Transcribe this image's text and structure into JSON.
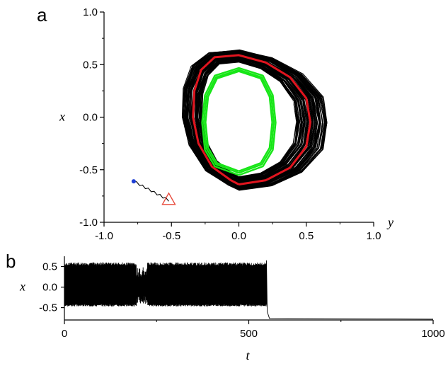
{
  "panels": {
    "a": {
      "label": "a"
    },
    "b": {
      "label": "b"
    }
  },
  "chart_data": [
    {
      "type": "scatter",
      "panel": "a",
      "description_type": "phase portrait",
      "xlabel": "y",
      "ylabel": "x",
      "xlim": [
        -1.0,
        1.0
      ],
      "ylim": [
        -1.0,
        1.0
      ],
      "xticks": [
        "-1.0",
        "-0.5",
        "0.0",
        "0.5",
        "1.0"
      ],
      "yticks": [
        "-1.0",
        "-0.5",
        "0.0",
        "0.5",
        "1.0"
      ],
      "x_tick_values": [
        -1.0,
        -0.5,
        0.0,
        0.5,
        1.0
      ],
      "y_tick_values": [
        -1.0,
        -0.5,
        0.0,
        0.5,
        1.0
      ],
      "grid": false,
      "colors": {
        "attractor": "#000000",
        "red_orbit": "#e0141e",
        "green_orbit": "#17e617",
        "start_point": "#1f3fd6",
        "end_marker": "#e84a3c"
      },
      "series": [
        {
          "color": "#e0141e",
          "x": [
            0.0,
            0.2,
            0.38,
            0.5,
            0.53,
            0.5,
            0.38,
            0.2,
            0.0,
            -0.18,
            -0.28,
            -0.33,
            -0.34,
            -0.3,
            -0.2,
            -0.06,
            0.0
          ],
          "y": [
            -0.64,
            -0.6,
            -0.48,
            -0.28,
            -0.05,
            0.18,
            0.38,
            0.52,
            0.59,
            0.57,
            0.45,
            0.25,
            0.0,
            -0.25,
            -0.47,
            -0.6,
            -0.64
          ]
        },
        {
          "color": "#17e617",
          "x": [
            0.0,
            0.17,
            0.24,
            0.26,
            0.24,
            0.17,
            0.0,
            -0.17,
            -0.24,
            -0.26,
            -0.24,
            -0.17,
            0.0
          ],
          "y": [
            -0.53,
            -0.45,
            -0.3,
            -0.05,
            0.2,
            0.38,
            0.45,
            0.38,
            0.2,
            -0.05,
            -0.3,
            -0.45,
            -0.53
          ]
        }
      ],
      "start_point": {
        "x": -0.78,
        "y": -0.61
      },
      "end_marker": {
        "x": -0.52,
        "y": -0.79
      }
    },
    {
      "type": "line",
      "panel": "b",
      "xlabel": "t",
      "ylabel": "x",
      "xlim": [
        0,
        1000
      ],
      "ylim": [
        -0.8,
        0.75
      ],
      "xticks": [
        "0",
        "500",
        "1000"
      ],
      "yticks": [
        "-0.5",
        "0.0",
        "0.5"
      ],
      "x_tick_values": [
        0,
        500,
        1000
      ],
      "y_tick_values": [
        -0.5,
        0.0,
        0.5
      ],
      "grid": false,
      "oscillation_range": [
        -0.47,
        0.6
      ],
      "transition_t": 548,
      "steady_value": -0.78,
      "x": [
        0,
        548,
        550,
        560,
        1000
      ],
      "y": [
        0.05,
        0.05,
        -0.7,
        -0.78,
        -0.78
      ]
    }
  ]
}
